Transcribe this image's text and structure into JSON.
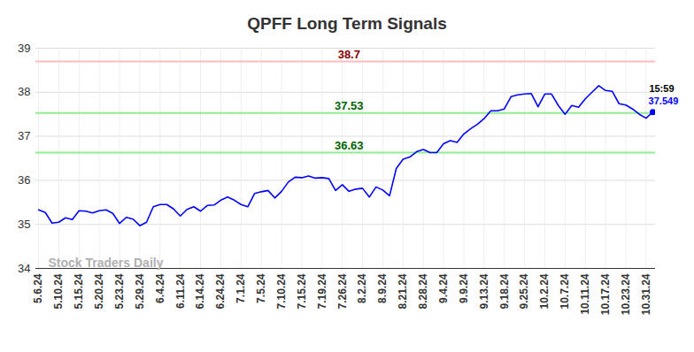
{
  "chart_data": {
    "type": "line",
    "title": "QPFF Long Term Signals",
    "watermark": "Stock Traders Daily",
    "categories": [
      "5.6.24",
      null,
      null,
      "5.10.24",
      null,
      null,
      "5.15.24",
      null,
      null,
      "5.20.24",
      null,
      null,
      "5.23.24",
      null,
      null,
      "5.29.24",
      null,
      null,
      "6.4.24",
      null,
      null,
      "6.11.24",
      null,
      null,
      "6.14.24",
      null,
      null,
      "6.24.24",
      null,
      null,
      "7.1.24",
      null,
      null,
      "7.5.24",
      null,
      null,
      "7.10.24",
      null,
      null,
      "7.15.24",
      null,
      null,
      "7.19.24",
      null,
      null,
      "7.26.24",
      null,
      null,
      "8.2.24",
      null,
      null,
      "8.9.24",
      null,
      null,
      "8.21.24",
      null,
      null,
      "8.28.24",
      null,
      null,
      "9.4.24",
      null,
      null,
      "9.9.24",
      null,
      null,
      "9.13.24",
      null,
      null,
      "9.18.24",
      null,
      null,
      "9.25.24",
      null,
      null,
      "10.2.24",
      null,
      null,
      "10.7.24",
      null,
      null,
      "10.11.24",
      null,
      null,
      "10.17.24",
      null,
      null,
      "10.23.24",
      null,
      null,
      "10.31.24",
      null
    ],
    "values": [
      35.33,
      35.27,
      35.03,
      35.05,
      35.15,
      35.11,
      35.31,
      35.3,
      35.26,
      35.31,
      35.33,
      35.25,
      35.02,
      35.16,
      35.12,
      34.97,
      35.05,
      35.4,
      35.45,
      35.45,
      35.35,
      35.19,
      35.34,
      35.4,
      35.3,
      35.43,
      35.44,
      35.55,
      35.62,
      35.55,
      35.45,
      35.4,
      35.7,
      35.74,
      35.77,
      35.6,
      35.75,
      35.96,
      36.07,
      36.06,
      36.1,
      36.05,
      36.06,
      36.04,
      35.77,
      35.9,
      35.75,
      35.8,
      35.82,
      35.62,
      35.85,
      35.78,
      35.65,
      36.27,
      36.48,
      36.53,
      36.65,
      36.7,
      36.63,
      36.63,
      36.83,
      36.9,
      36.86,
      37.05,
      37.17,
      37.27,
      37.4,
      37.58,
      37.58,
      37.62,
      37.9,
      37.94,
      37.96,
      37.97,
      37.67,
      37.96,
      37.96,
      37.7,
      37.5,
      37.7,
      37.66,
      37.85,
      38.0,
      38.15,
      38.04,
      38.02,
      37.74,
      37.71,
      37.62,
      37.5,
      37.41,
      37.549
    ],
    "color": "#0000ff",
    "ylim": [
      34,
      39
    ],
    "yticks": [
      34,
      35,
      36,
      37,
      38,
      39
    ],
    "grid": true,
    "hlines": [
      {
        "value": 38.7,
        "color": "#ffbcbc",
        "label_color": "#8b0000"
      },
      {
        "value": 37.53,
        "color": "#90ee90",
        "label_color": "#006400"
      },
      {
        "value": 36.63,
        "color": "#90ee90",
        "label_color": "#006400"
      }
    ],
    "last_point": {
      "time": "15:59",
      "value_label": "37.549"
    }
  }
}
